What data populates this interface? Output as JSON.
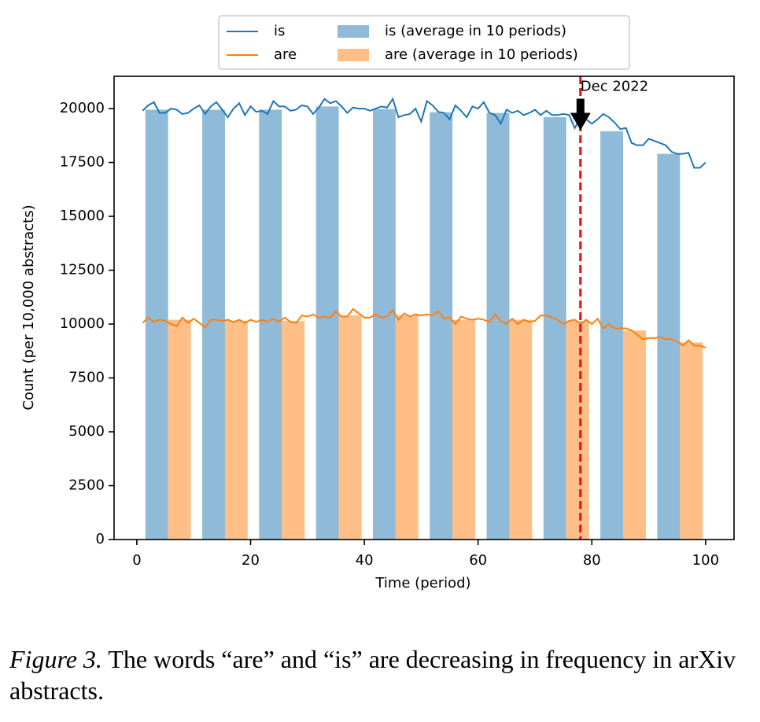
{
  "chart_data": {
    "type": "bar",
    "xlabel": "Time (period)",
    "ylabel": "Count (per 10,000 abstracts)",
    "xlim": [
      -4,
      105
    ],
    "ylim": [
      0,
      21500
    ],
    "xticks": [
      0,
      20,
      40,
      60,
      80,
      100
    ],
    "yticks": [
      0,
      2500,
      5000,
      7500,
      10000,
      12500,
      15000,
      17500,
      20000
    ],
    "grid": false,
    "legend": "upper center",
    "x": [
      1,
      2,
      3,
      4,
      5,
      6,
      7,
      8,
      9,
      10,
      11,
      12,
      13,
      14,
      15,
      16,
      17,
      18,
      19,
      20,
      21,
      22,
      23,
      24,
      25,
      26,
      27,
      28,
      29,
      30,
      31,
      32,
      33,
      34,
      35,
      36,
      37,
      38,
      39,
      40,
      41,
      42,
      43,
      44,
      45,
      46,
      47,
      48,
      49,
      50,
      51,
      52,
      53,
      54,
      55,
      56,
      57,
      58,
      59,
      60,
      61,
      62,
      63,
      64,
      65,
      66,
      67,
      68,
      69,
      70,
      71,
      72,
      73,
      74,
      75,
      76,
      77,
      78,
      79,
      80,
      81,
      82,
      83,
      84,
      85,
      86,
      87,
      88,
      89,
      90,
      91,
      92,
      93,
      94,
      95,
      96,
      97,
      98,
      99,
      100
    ],
    "series": [
      {
        "name": "is",
        "type": "line",
        "color": "#1f77b4",
        "values": [
          19900,
          20150,
          20300,
          19800,
          19800,
          20000,
          19950,
          19750,
          19800,
          20000,
          20150,
          19750,
          20100,
          20300,
          19950,
          19600,
          20000,
          20250,
          19700,
          20100,
          19850,
          19900,
          19750,
          20350,
          20100,
          20100,
          19900,
          19950,
          20150,
          20100,
          19750,
          20050,
          20450,
          20250,
          20350,
          20100,
          19800,
          20050,
          20000,
          20000,
          19900,
          20000,
          20100,
          20050,
          20450,
          19600,
          19700,
          19750,
          20000,
          19400,
          20350,
          20150,
          19850,
          19800,
          19500,
          20150,
          19900,
          19600,
          20100,
          20000,
          20300,
          19800,
          19700,
          19300,
          19950,
          19800,
          19900,
          19700,
          19800,
          19950,
          19700,
          19900,
          19700,
          19700,
          19750,
          19700,
          19100,
          19550,
          19500,
          19300,
          19500,
          19750,
          19600,
          19350,
          19050,
          19100,
          18400,
          18300,
          18300,
          18600,
          18500,
          18400,
          18300,
          18000,
          17900,
          17900,
          17950,
          17250,
          17250,
          17500
        ]
      },
      {
        "name": "are",
        "type": "line",
        "color": "#ff7f0e",
        "values": [
          10050,
          10300,
          10100,
          10200,
          10150,
          10000,
          9900,
          10300,
          10050,
          10250,
          10050,
          9850,
          10200,
          10200,
          10150,
          10200,
          10100,
          10200,
          10050,
          10200,
          10100,
          10200,
          10100,
          10250,
          10100,
          10300,
          10100,
          10050,
          10400,
          10350,
          10450,
          10300,
          10350,
          10300,
          10600,
          10350,
          10350,
          10700,
          10500,
          10300,
          10300,
          10450,
          10300,
          10350,
          10650,
          10200,
          10500,
          10350,
          10450,
          10400,
          10450,
          10400,
          10600,
          10250,
          10300,
          10000,
          10350,
          10250,
          10200,
          10250,
          10200,
          10100,
          10450,
          10150,
          10000,
          10250,
          10000,
          10200,
          10100,
          10150,
          10400,
          10400,
          10300,
          10200,
          10000,
          10150,
          10200,
          10000,
          10200,
          10000,
          10250,
          9800,
          10000,
          9800,
          9800,
          9800,
          9700,
          9500,
          9300,
          9350,
          9350,
          9400,
          9300,
          9300,
          9200,
          9000,
          9250,
          9000,
          9000,
          8900
        ]
      },
      {
        "name": "is (average in 10 periods)",
        "type": "bar",
        "color": "#8fbbd9",
        "x": [
          3.5,
          13.5,
          23.5,
          33.5,
          43.5,
          53.5,
          63.5,
          73.5,
          83.5,
          93.5
        ],
        "values": [
          19950,
          19950,
          19950,
          20100,
          19980,
          19830,
          19800,
          19600,
          18950,
          17900
        ]
      },
      {
        "name": "are (average in 10 periods)",
        "type": "bar",
        "color": "#ffbf86",
        "x": [
          7.5,
          17.5,
          27.5,
          37.5,
          47.5,
          57.5,
          67.5,
          77.5,
          87.5,
          97.5
        ],
        "values": [
          10200,
          10150,
          10150,
          10400,
          10400,
          10200,
          10200,
          10150,
          9700,
          9150
        ]
      }
    ],
    "annotation": {
      "text": "Dec 2022",
      "xy": [
        78,
        19000
      ],
      "color": "#e8141c"
    }
  },
  "caption": {
    "label": "Figure 3.",
    "text": "The words “are” and “is” are decreasing in frequency in arXiv abstracts."
  }
}
